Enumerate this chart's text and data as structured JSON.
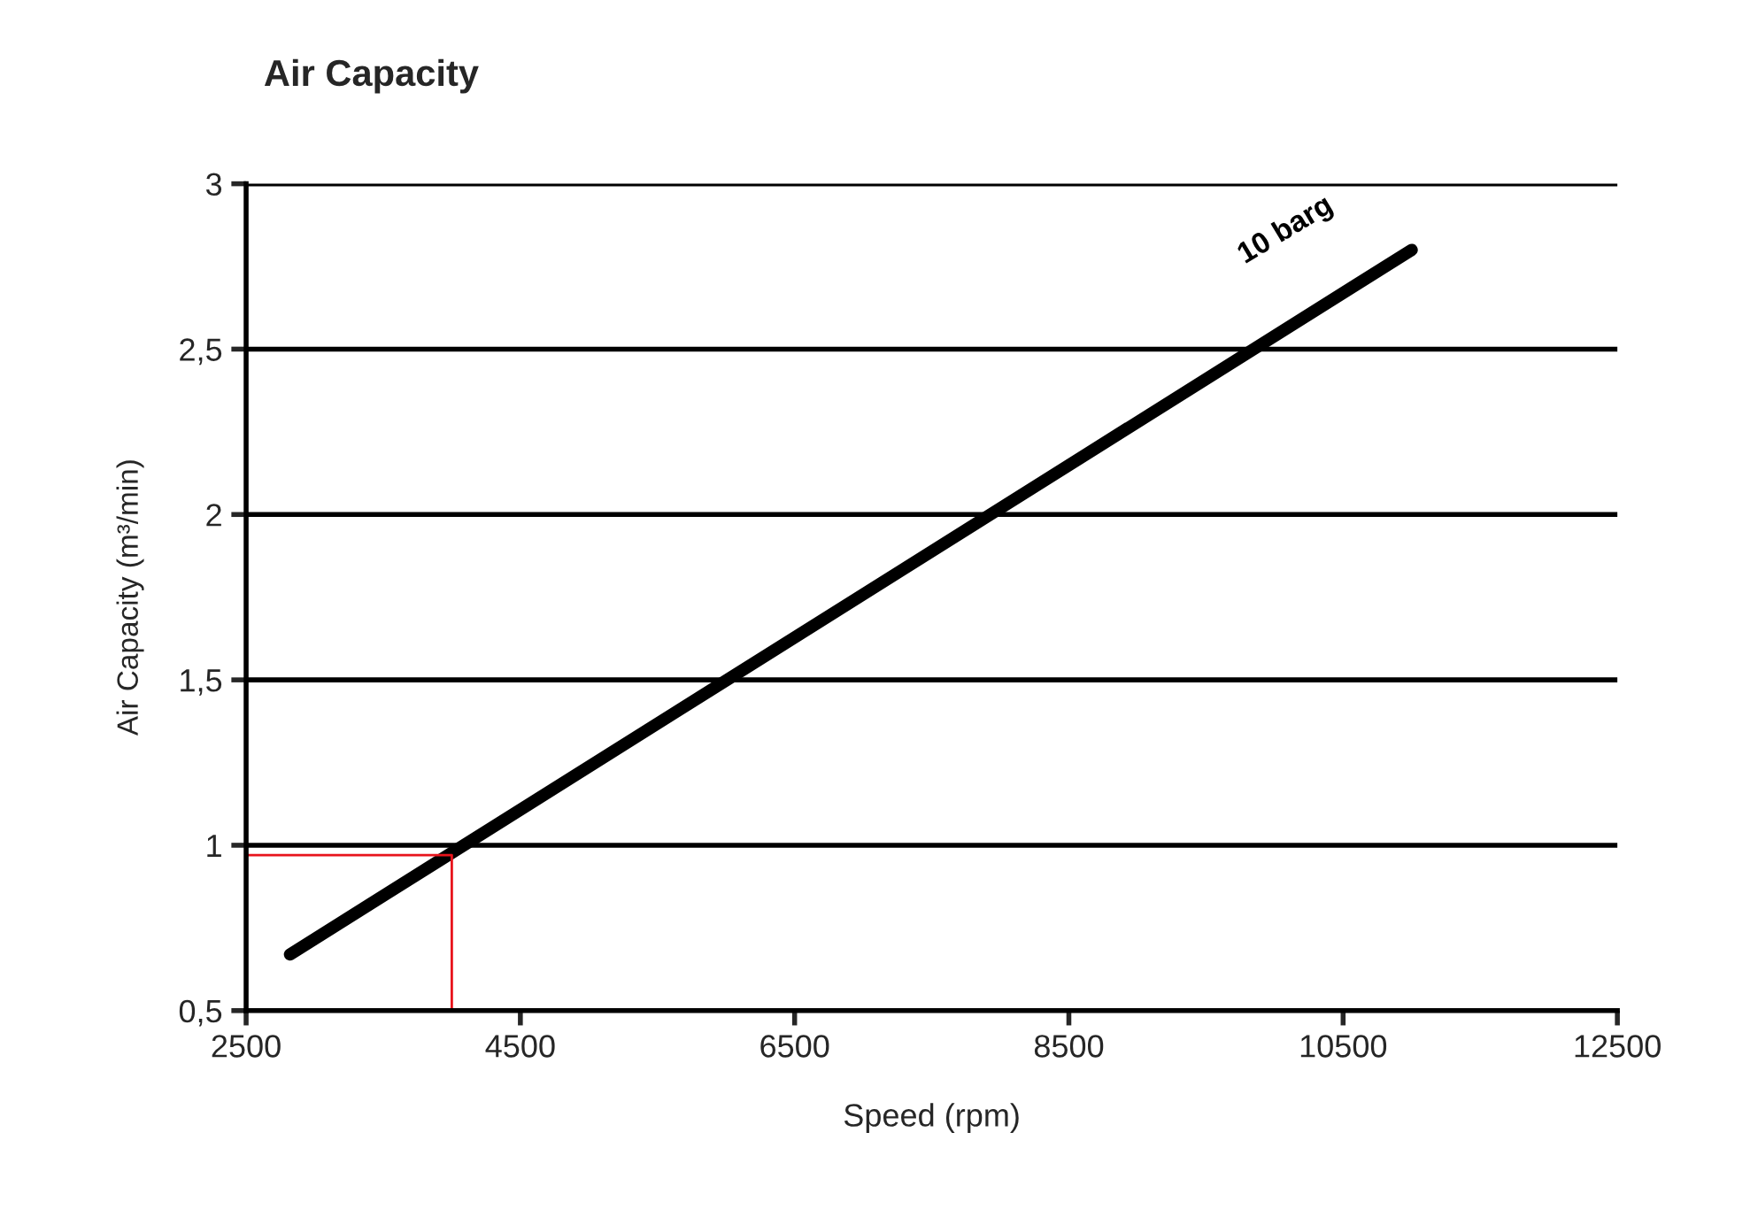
{
  "chart_data": {
    "type": "line",
    "title": "Air Capacity",
    "xlabel": "Speed (rpm)",
    "ylabel": "Air Capacity (m³/min)",
    "series": [
      {
        "name": "10 barg",
        "color": "#000000",
        "x": [
          2820,
          11000
        ],
        "values": [
          0.67,
          2.8
        ]
      },
      {
        "color": "#e8141c",
        "x": [
          2500,
          4000,
          4000
        ],
        "values": [
          0.97,
          0.97,
          0.5
        ]
      }
    ],
    "xlim": [
      2500,
      12500
    ],
    "xticks": [
      2500,
      4500,
      6500,
      8500,
      10500,
      12500
    ],
    "ylim": [
      0.5,
      3
    ],
    "yticks": [
      {
        "value": 0.5,
        "label": "0,5"
      },
      {
        "value": 1,
        "label": "1"
      },
      {
        "value": 1.5,
        "label": "1,5"
      },
      {
        "value": 2,
        "label": "2"
      },
      {
        "value": 2.5,
        "label": "2,5"
      },
      {
        "value": 3,
        "label": "3"
      }
    ],
    "grid": "y",
    "legend": false,
    "marker": "none",
    "line_style": "solid"
  }
}
